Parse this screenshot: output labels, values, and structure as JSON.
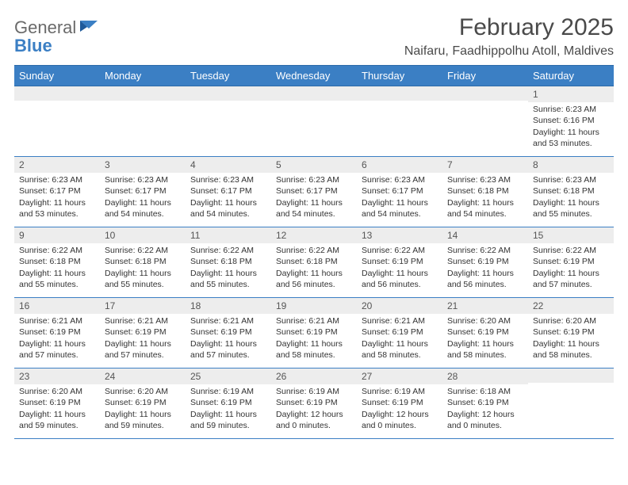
{
  "brand": {
    "text1": "General",
    "text2": "Blue"
  },
  "title": "February 2025",
  "location": "Naifaru, Faadhippolhu Atoll, Maldives",
  "colors": {
    "header_bg": "#3b7fc4",
    "header_text": "#ffffff",
    "daynum_bg": "#ededed",
    "border": "#3b7fc4",
    "page_bg": "#ffffff",
    "body_text": "#333333",
    "title_text": "#4a4a4a"
  },
  "dayNames": [
    "Sunday",
    "Monday",
    "Tuesday",
    "Wednesday",
    "Thursday",
    "Friday",
    "Saturday"
  ],
  "weeks": [
    [
      {
        "n": "",
        "sunrise": "",
        "sunset": "",
        "daylight": ""
      },
      {
        "n": "",
        "sunrise": "",
        "sunset": "",
        "daylight": ""
      },
      {
        "n": "",
        "sunrise": "",
        "sunset": "",
        "daylight": ""
      },
      {
        "n": "",
        "sunrise": "",
        "sunset": "",
        "daylight": ""
      },
      {
        "n": "",
        "sunrise": "",
        "sunset": "",
        "daylight": ""
      },
      {
        "n": "",
        "sunrise": "",
        "sunset": "",
        "daylight": ""
      },
      {
        "n": "1",
        "sunrise": "Sunrise: 6:23 AM",
        "sunset": "Sunset: 6:16 PM",
        "daylight": "Daylight: 11 hours and 53 minutes."
      }
    ],
    [
      {
        "n": "2",
        "sunrise": "Sunrise: 6:23 AM",
        "sunset": "Sunset: 6:17 PM",
        "daylight": "Daylight: 11 hours and 53 minutes."
      },
      {
        "n": "3",
        "sunrise": "Sunrise: 6:23 AM",
        "sunset": "Sunset: 6:17 PM",
        "daylight": "Daylight: 11 hours and 54 minutes."
      },
      {
        "n": "4",
        "sunrise": "Sunrise: 6:23 AM",
        "sunset": "Sunset: 6:17 PM",
        "daylight": "Daylight: 11 hours and 54 minutes."
      },
      {
        "n": "5",
        "sunrise": "Sunrise: 6:23 AM",
        "sunset": "Sunset: 6:17 PM",
        "daylight": "Daylight: 11 hours and 54 minutes."
      },
      {
        "n": "6",
        "sunrise": "Sunrise: 6:23 AM",
        "sunset": "Sunset: 6:17 PM",
        "daylight": "Daylight: 11 hours and 54 minutes."
      },
      {
        "n": "7",
        "sunrise": "Sunrise: 6:23 AM",
        "sunset": "Sunset: 6:18 PM",
        "daylight": "Daylight: 11 hours and 54 minutes."
      },
      {
        "n": "8",
        "sunrise": "Sunrise: 6:23 AM",
        "sunset": "Sunset: 6:18 PM",
        "daylight": "Daylight: 11 hours and 55 minutes."
      }
    ],
    [
      {
        "n": "9",
        "sunrise": "Sunrise: 6:22 AM",
        "sunset": "Sunset: 6:18 PM",
        "daylight": "Daylight: 11 hours and 55 minutes."
      },
      {
        "n": "10",
        "sunrise": "Sunrise: 6:22 AM",
        "sunset": "Sunset: 6:18 PM",
        "daylight": "Daylight: 11 hours and 55 minutes."
      },
      {
        "n": "11",
        "sunrise": "Sunrise: 6:22 AM",
        "sunset": "Sunset: 6:18 PM",
        "daylight": "Daylight: 11 hours and 55 minutes."
      },
      {
        "n": "12",
        "sunrise": "Sunrise: 6:22 AM",
        "sunset": "Sunset: 6:18 PM",
        "daylight": "Daylight: 11 hours and 56 minutes."
      },
      {
        "n": "13",
        "sunrise": "Sunrise: 6:22 AM",
        "sunset": "Sunset: 6:19 PM",
        "daylight": "Daylight: 11 hours and 56 minutes."
      },
      {
        "n": "14",
        "sunrise": "Sunrise: 6:22 AM",
        "sunset": "Sunset: 6:19 PM",
        "daylight": "Daylight: 11 hours and 56 minutes."
      },
      {
        "n": "15",
        "sunrise": "Sunrise: 6:22 AM",
        "sunset": "Sunset: 6:19 PM",
        "daylight": "Daylight: 11 hours and 57 minutes."
      }
    ],
    [
      {
        "n": "16",
        "sunrise": "Sunrise: 6:21 AM",
        "sunset": "Sunset: 6:19 PM",
        "daylight": "Daylight: 11 hours and 57 minutes."
      },
      {
        "n": "17",
        "sunrise": "Sunrise: 6:21 AM",
        "sunset": "Sunset: 6:19 PM",
        "daylight": "Daylight: 11 hours and 57 minutes."
      },
      {
        "n": "18",
        "sunrise": "Sunrise: 6:21 AM",
        "sunset": "Sunset: 6:19 PM",
        "daylight": "Daylight: 11 hours and 57 minutes."
      },
      {
        "n": "19",
        "sunrise": "Sunrise: 6:21 AM",
        "sunset": "Sunset: 6:19 PM",
        "daylight": "Daylight: 11 hours and 58 minutes."
      },
      {
        "n": "20",
        "sunrise": "Sunrise: 6:21 AM",
        "sunset": "Sunset: 6:19 PM",
        "daylight": "Daylight: 11 hours and 58 minutes."
      },
      {
        "n": "21",
        "sunrise": "Sunrise: 6:20 AM",
        "sunset": "Sunset: 6:19 PM",
        "daylight": "Daylight: 11 hours and 58 minutes."
      },
      {
        "n": "22",
        "sunrise": "Sunrise: 6:20 AM",
        "sunset": "Sunset: 6:19 PM",
        "daylight": "Daylight: 11 hours and 58 minutes."
      }
    ],
    [
      {
        "n": "23",
        "sunrise": "Sunrise: 6:20 AM",
        "sunset": "Sunset: 6:19 PM",
        "daylight": "Daylight: 11 hours and 59 minutes."
      },
      {
        "n": "24",
        "sunrise": "Sunrise: 6:20 AM",
        "sunset": "Sunset: 6:19 PM",
        "daylight": "Daylight: 11 hours and 59 minutes."
      },
      {
        "n": "25",
        "sunrise": "Sunrise: 6:19 AM",
        "sunset": "Sunset: 6:19 PM",
        "daylight": "Daylight: 11 hours and 59 minutes."
      },
      {
        "n": "26",
        "sunrise": "Sunrise: 6:19 AM",
        "sunset": "Sunset: 6:19 PM",
        "daylight": "Daylight: 12 hours and 0 minutes."
      },
      {
        "n": "27",
        "sunrise": "Sunrise: 6:19 AM",
        "sunset": "Sunset: 6:19 PM",
        "daylight": "Daylight: 12 hours and 0 minutes."
      },
      {
        "n": "28",
        "sunrise": "Sunrise: 6:18 AM",
        "sunset": "Sunset: 6:19 PM",
        "daylight": "Daylight: 12 hours and 0 minutes."
      },
      {
        "n": "",
        "sunrise": "",
        "sunset": "",
        "daylight": ""
      }
    ]
  ]
}
